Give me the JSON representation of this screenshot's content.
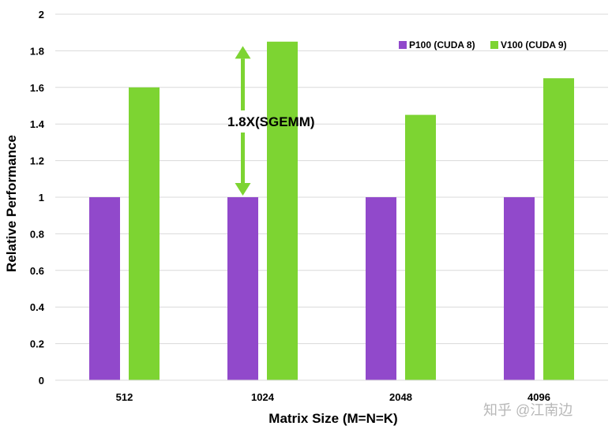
{
  "chart_data": {
    "type": "bar",
    "title": "",
    "xlabel": "Matrix Size (M=N=K)",
    "ylabel": "Relative Performance",
    "ylim": [
      0,
      2
    ],
    "yticks": [
      0,
      0.2,
      0.4,
      0.6,
      0.8,
      1,
      1.2,
      1.4,
      1.6,
      1.8,
      2
    ],
    "ytick_labels": [
      "0",
      "0.2",
      "0.4",
      "0.6",
      "0.8",
      "1",
      "1.2",
      "1.4",
      "1.6",
      "1.8",
      "2"
    ],
    "grid": true,
    "legend_position": "top-right",
    "categories": [
      "512",
      "1024",
      "2048",
      "4096"
    ],
    "series": [
      {
        "name": "P100 (CUDA 8)",
        "values": [
          1,
          1,
          1,
          1
        ],
        "color": "#9149cb"
      },
      {
        "name": "V100 (CUDA 9)",
        "values": [
          1.6,
          1.85,
          1.45,
          1.65
        ],
        "color": "#7dd432"
      }
    ],
    "annotation": {
      "text": "1.8X(SGEMM)",
      "category": "1024",
      "from": 1,
      "to": 1.8,
      "color": "#7dd432"
    }
  },
  "watermark": {
    "text": "知乎 @江南边"
  }
}
